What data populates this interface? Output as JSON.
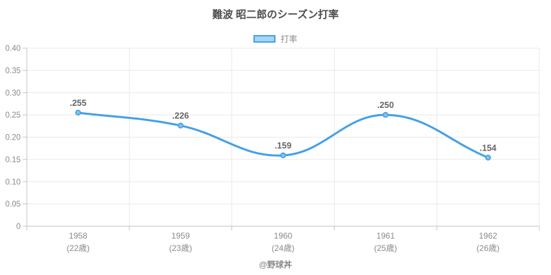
{
  "title": "難波 昭二郎のシーズン打率",
  "legend": {
    "label": "打率"
  },
  "footer": "@野球丼",
  "colors": {
    "line": "#44a0e5",
    "point_fill": "#7fc0ee",
    "legend_fill": "#a7d5f3",
    "legend_border": "#44a0e5",
    "grid": "#e9e9e9",
    "axis": "#c3c3c3",
    "tick_label": "#8a8a8a",
    "data_label": "#666666",
    "title_color": "#4d4d4d"
  },
  "chart_data": {
    "type": "line",
    "title": "難波 昭二郎のシーズン打率",
    "categories": [
      "1958",
      "1959",
      "1960",
      "1961",
      "1962"
    ],
    "category_sublabels": [
      "(22歳)",
      "(23歳)",
      "(24歳)",
      "(25歳)",
      "(26歳)"
    ],
    "series": [
      {
        "name": "打率",
        "values": [
          0.255,
          0.226,
          0.159,
          0.25,
          0.154
        ]
      }
    ],
    "point_labels": [
      ".255",
      ".226",
      ".159",
      ".250",
      ".154"
    ],
    "xlabel": "",
    "ylabel": "",
    "ylim": [
      0,
      0.4
    ],
    "ytick_step": 0.05,
    "ytick_labels": [
      "0",
      "0.05",
      "0.10",
      "0.15",
      "0.20",
      "0.25",
      "0.30",
      "0.35",
      "0.40"
    ],
    "grid": true,
    "legend_position": "top",
    "curve": "smooth"
  }
}
